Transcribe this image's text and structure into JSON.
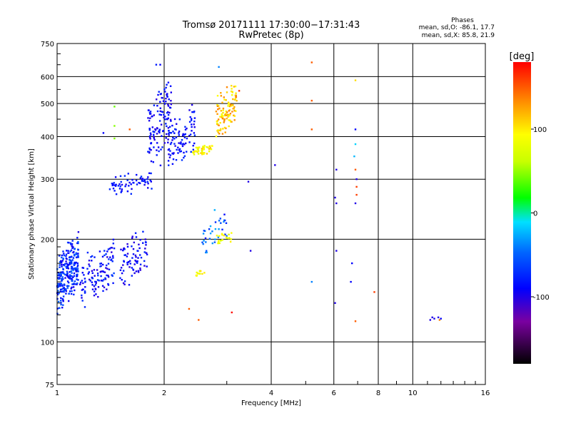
{
  "chart_data": {
    "type": "scatter",
    "title": "Tromsø 20171111 17:30:00−17:31:43",
    "subtitle": "RwPretec (8p)",
    "xlabel": "Frequency [MHz]",
    "ylabel": "Stationary phase Virtual Height [km]",
    "x_scale": "log",
    "y_scale": "log",
    "xlim": [
      1,
      16
    ],
    "ylim": [
      75,
      750
    ],
    "x_ticks": [
      1,
      2,
      4,
      6,
      8,
      10,
      16
    ],
    "x_tick_labels": [
      "1",
      "2",
      "4",
      "6",
      "8",
      "10",
      "16"
    ],
    "y_ticks": [
      75,
      100,
      200,
      300,
      400,
      500,
      600,
      750
    ],
    "y_tick_labels": [
      "75",
      "100",
      "200",
      "300",
      "400",
      "500",
      "600",
      "750"
    ],
    "grid": true,
    "stats": {
      "title": "Phases",
      "line1": "mean, sd,O: -86.1, 17.7",
      "line2": "mean, sd,X:  85.8, 21.9"
    },
    "colorbar": {
      "label": "[deg]",
      "min": -180,
      "max": 180,
      "ticks": [
        100,
        0,
        -100
      ],
      "tick_labels": [
        "100",
        "0",
        "-100"
      ]
    },
    "clusters": [
      {
        "f": [
          1.0,
          1.15
        ],
        "h": [
          120,
          210
        ],
        "ph": [
          -110,
          -60
        ],
        "n": 260
      },
      {
        "f": [
          1.15,
          1.45
        ],
        "h": [
          125,
          200
        ],
        "ph": [
          -115,
          -75
        ],
        "n": 120
      },
      {
        "f": [
          1.5,
          1.8
        ],
        "h": [
          140,
          220
        ],
        "ph": [
          -115,
          -85
        ],
        "n": 80
      },
      {
        "f": [
          1.4,
          1.85
        ],
        "h": [
          265,
          320
        ],
        "ph": [
          -110,
          -80
        ],
        "n": 60
      },
      {
        "f": [
          1.8,
          2.1
        ],
        "h": [
          300,
          600
        ],
        "ph": [
          -115,
          -85
        ],
        "n": 130
      },
      {
        "f": [
          2.05,
          2.45
        ],
        "h": [
          300,
          500
        ],
        "ph": [
          -110,
          -80
        ],
        "n": 90
      },
      {
        "f": [
          2.4,
          2.75
        ],
        "h": [
          350,
          380
        ],
        "ph": [
          80,
          120
        ],
        "n": 45
      },
      {
        "f": [
          2.8,
          3.2
        ],
        "h": [
          380,
          590
        ],
        "ph": [
          90,
          140
        ],
        "n": 110
      },
      {
        "f": [
          2.55,
          3.0
        ],
        "h": [
          170,
          260
        ],
        "ph": [
          -100,
          -30
        ],
        "n": 35
      },
      {
        "f": [
          2.8,
          3.1
        ],
        "h": [
          190,
          215
        ],
        "ph": [
          70,
          110
        ],
        "n": 22
      },
      {
        "f": [
          2.45,
          2.6
        ],
        "h": [
          155,
          165
        ],
        "ph": [
          80,
          110
        ],
        "n": 12
      }
    ],
    "points": [
      {
        "f": 1.9,
        "h": 650,
        "ph": -90
      },
      {
        "f": 1.95,
        "h": 650,
        "ph": -100
      },
      {
        "f": 2.85,
        "h": 640,
        "ph": -50
      },
      {
        "f": 5.2,
        "h": 660,
        "ph": 150
      },
      {
        "f": 5.2,
        "h": 510,
        "ph": 150
      },
      {
        "f": 5.2,
        "h": 420,
        "ph": 150
      },
      {
        "f": 3.25,
        "h": 545,
        "ph": 160
      },
      {
        "f": 6.9,
        "h": 585,
        "ph": 110
      },
      {
        "f": 1.6,
        "h": 420,
        "ph": 150
      },
      {
        "f": 1.45,
        "h": 490,
        "ph": 30
      },
      {
        "f": 1.45,
        "h": 430,
        "ph": 40
      },
      {
        "f": 1.35,
        "h": 410,
        "ph": -100
      },
      {
        "f": 1.45,
        "h": 395,
        "ph": 40
      },
      {
        "f": 4.1,
        "h": 330,
        "ph": -110
      },
      {
        "f": 6.1,
        "h": 320,
        "ph": -110
      },
      {
        "f": 6.9,
        "h": 420,
        "ph": -100
      },
      {
        "f": 6.9,
        "h": 380,
        "ph": -20
      },
      {
        "f": 6.85,
        "h": 350,
        "ph": -30
      },
      {
        "f": 6.9,
        "h": 320,
        "ph": 150
      },
      {
        "f": 6.95,
        "h": 300,
        "ph": -110
      },
      {
        "f": 6.95,
        "h": 285,
        "ph": 160
      },
      {
        "f": 6.95,
        "h": 270,
        "ph": 160
      },
      {
        "f": 6.9,
        "h": 255,
        "ph": -110
      },
      {
        "f": 6.05,
        "h": 265,
        "ph": -110
      },
      {
        "f": 6.1,
        "h": 255,
        "ph": -110
      },
      {
        "f": 6.1,
        "h": 185,
        "ph": -110
      },
      {
        "f": 6.75,
        "h": 170,
        "ph": -100
      },
      {
        "f": 6.7,
        "h": 150,
        "ph": -100
      },
      {
        "f": 6.05,
        "h": 130,
        "ph": -110
      },
      {
        "f": 6.9,
        "h": 115,
        "ph": 150
      },
      {
        "f": 7.8,
        "h": 140,
        "ph": 160
      },
      {
        "f": 5.2,
        "h": 150,
        "ph": -50
      },
      {
        "f": 3.45,
        "h": 295,
        "ph": -110
      },
      {
        "f": 3.5,
        "h": 185,
        "ph": -110
      },
      {
        "f": 3.1,
        "h": 122,
        "ph": 175
      },
      {
        "f": 2.5,
        "h": 116,
        "ph": 150
      },
      {
        "f": 2.35,
        "h": 125,
        "ph": 150
      },
      {
        "f": 11.2,
        "h": 116,
        "ph": -110
      },
      {
        "f": 11.5,
        "h": 117,
        "ph": -110
      },
      {
        "f": 11.8,
        "h": 118,
        "ph": -110
      },
      {
        "f": 11.35,
        "h": 118,
        "ph": -110
      },
      {
        "f": 11.9,
        "h": 116,
        "ph": 140
      },
      {
        "f": 12.0,
        "h": 117,
        "ph": -100
      }
    ]
  }
}
